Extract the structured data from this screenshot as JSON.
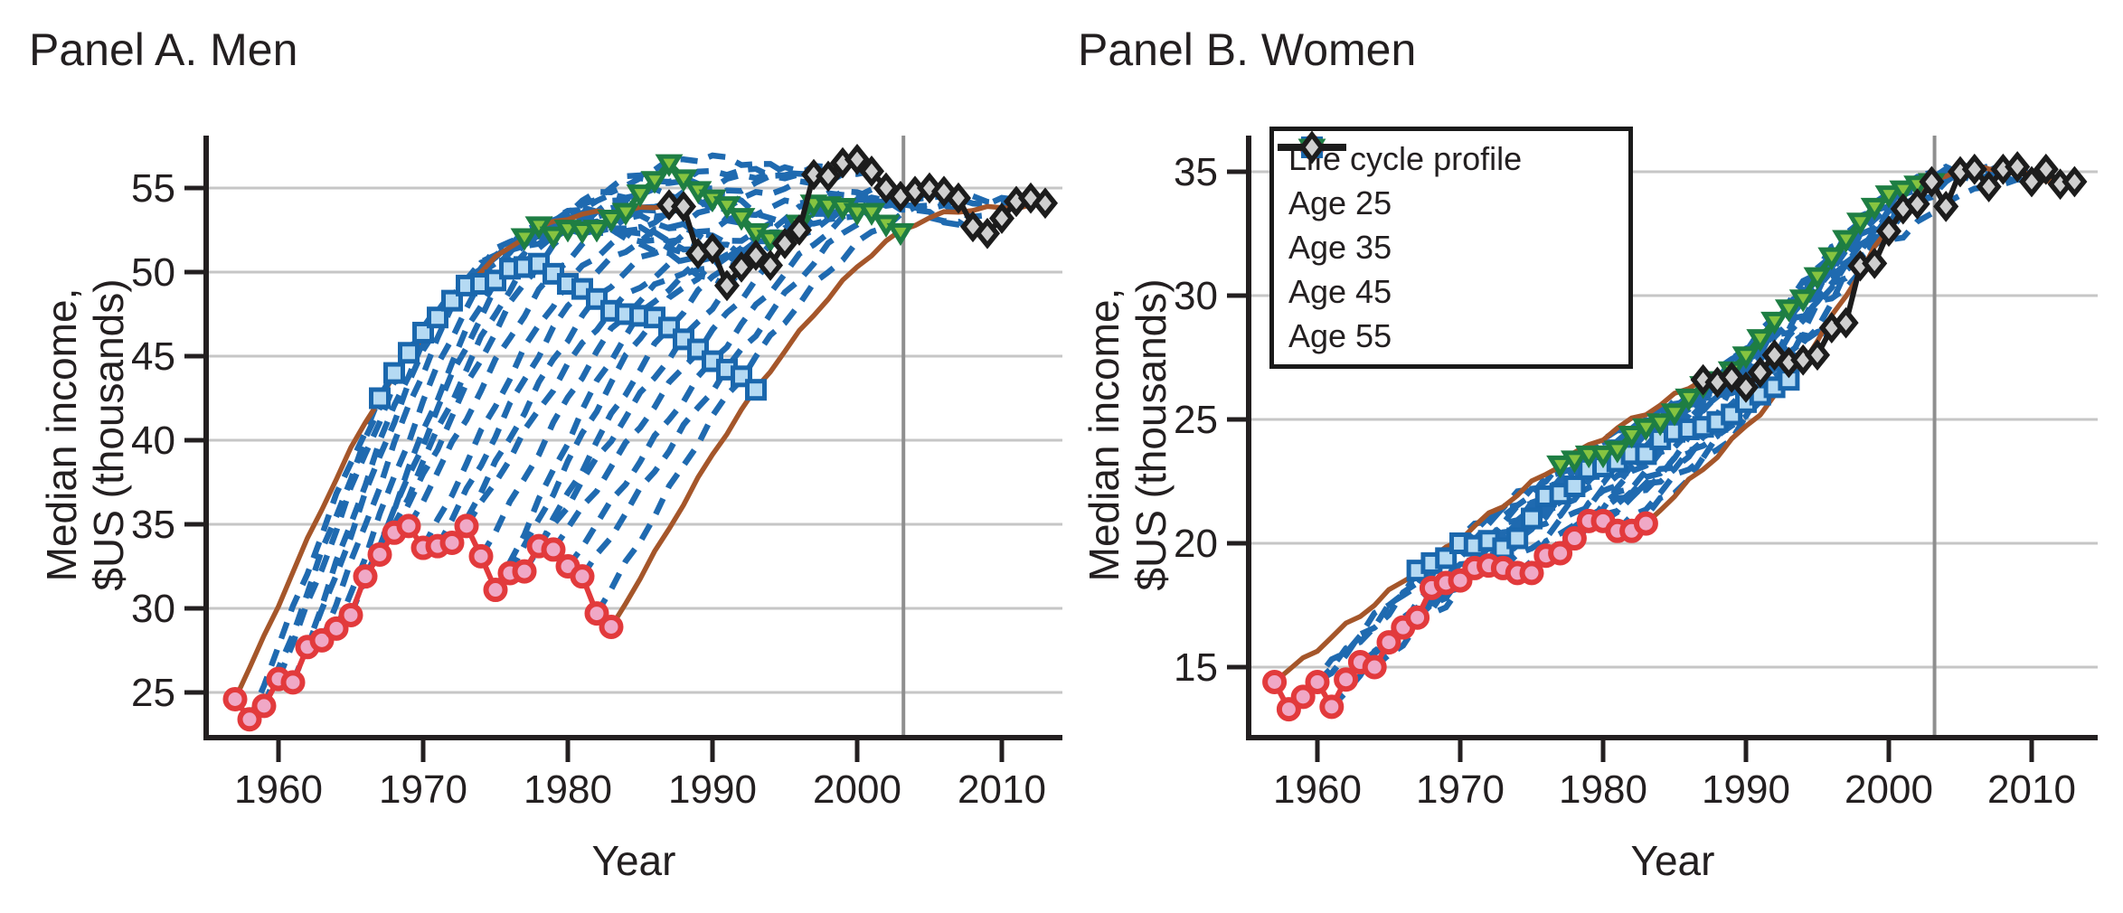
{
  "figure": {
    "panel_a_title": "Panel A. Men",
    "panel_b_title": "Panel B. Women"
  },
  "colors": {
    "profile_blue": "#1f6ab0",
    "age25_red": "#e23a3c",
    "age25_fill": "#f0a8c6",
    "age35_blue": "#1a67ad",
    "age35_fill": "#b5daf3",
    "age45_green": "#1e7e43",
    "age45_fill": "#86c440",
    "age55_black": "#1c1c1c",
    "age55_fill": "#cfcfcf",
    "cohort_brown": "#a5562a",
    "gridline_gray": "#c6c6c6",
    "reference_gray": "#8f8f8f",
    "text": "#231f20"
  },
  "legend": {
    "items": [
      {
        "label": "Life cycle profile",
        "style": "dashed-blue-line"
      },
      {
        "label": "Age 25",
        "style": "red-line-circle-marker"
      },
      {
        "label": "Age 35",
        "style": "blue-line-square-marker"
      },
      {
        "label": "Age 45",
        "style": "green-line-triangle-down-marker"
      },
      {
        "label": "Age 55",
        "style": "black-line-diamond-marker"
      }
    ]
  },
  "chart_data": [
    {
      "type": "line",
      "title": "Panel A. Men",
      "xlabel": "Year",
      "ylabel_line1": "Median income,",
      "ylabel_line2": "$US (thousands)",
      "x_ticks": [
        1960,
        1970,
        1980,
        1990,
        2000,
        2010
      ],
      "y_ticks": [
        25,
        30,
        35,
        40,
        45,
        50,
        55
      ],
      "xlim": [
        1955,
        2014.3
      ],
      "ylim": [
        22.3,
        58.1
      ],
      "grid": "horizontal-only",
      "reference_line_year": 2003,
      "series": [
        {
          "name": "Age 25",
          "start_year": 1957,
          "values": [
            24.6,
            23.4,
            24.2,
            25.8,
            25.6,
            27.7,
            28.1,
            28.8,
            29.6,
            31.9,
            33.2,
            34.5,
            34.9,
            33.6,
            33.7,
            33.9,
            34.9,
            33.1,
            31.1,
            32.1,
            32.2,
            33.7,
            33.5,
            32.5,
            31.9,
            29.7,
            28.9
          ]
        },
        {
          "name": "Age 35",
          "start_year": 1967,
          "values": [
            42.5,
            44.0,
            45.2,
            46.4,
            47.3,
            48.3,
            49.2,
            49.3,
            49.5,
            50.2,
            50.3,
            50.5,
            49.9,
            49.3,
            49.0,
            48.4,
            47.7,
            47.5,
            47.4,
            47.3,
            46.7,
            46.0,
            45.4,
            44.7,
            44.2,
            43.8,
            43.0
          ]
        },
        {
          "name": "Age 45",
          "start_year": 1977,
          "values": [
            52.1,
            52.8,
            52.2,
            52.6,
            52.5,
            52.6,
            53.2,
            53.6,
            54.7,
            55.5,
            56.5,
            55.6,
            54.9,
            54.4,
            54.0,
            53.3,
            52.4,
            52.0,
            51.9,
            52.9,
            54.1,
            54.0,
            53.9,
            53.6,
            53.6,
            52.9,
            52.4
          ]
        },
        {
          "name": "Age 55",
          "start_year": 1987,
          "values": [
            54.0,
            53.9,
            51.1,
            51.4,
            49.2,
            50.3,
            51.0,
            50.4,
            51.7,
            52.5,
            55.8,
            55.7,
            56.5,
            56.7,
            56.0,
            55.0,
            54.5,
            54.8,
            55.0,
            54.8,
            54.4,
            52.7,
            52.3,
            53.2,
            54.2,
            54.4,
            54.1
          ]
        }
      ],
      "life_cycle_profiles": {
        "note": "27 dashed blue cohort profiles; each connects the same cohort at age 25, 35, 45 and 55 (years t, t+10, t+20, t+30). First (1957) and last (1983) age-25 cohorts are drawn as solid brown lines.",
        "cohorts": 27,
        "first_age25_year": 1957,
        "last_age25_year": 1983
      }
    },
    {
      "type": "line",
      "title": "Panel B. Women",
      "xlabel": "Year",
      "ylabel_line1": "Median income,",
      "ylabel_line2": "$US (thousands)",
      "x_ticks": [
        1960,
        1970,
        1980,
        1990,
        2000,
        2010
      ],
      "y_ticks": [
        15,
        20,
        25,
        30,
        35
      ],
      "xlim": [
        1955,
        2014.6
      ],
      "ylim": [
        12.2,
        36.5
      ],
      "grid": "horizontal-only",
      "reference_line_year": 2003,
      "series": [
        {
          "name": "Age 25",
          "start_year": 1957,
          "values": [
            14.4,
            13.3,
            13.8,
            14.4,
            13.4,
            14.5,
            15.2,
            15.0,
            16.0,
            16.6,
            17.0,
            18.2,
            18.4,
            18.5,
            19.0,
            19.1,
            19.0,
            18.8,
            18.8,
            19.5,
            19.6,
            20.2,
            20.9,
            20.9,
            20.5,
            20.5,
            20.8
          ]
        },
        {
          "name": "Age 35",
          "start_year": 1967,
          "values": [
            18.9,
            19.2,
            19.4,
            20.0,
            19.9,
            20.1,
            19.8,
            20.2,
            21.0,
            21.9,
            22.0,
            22.3,
            23.0,
            23.1,
            23.3,
            23.6,
            23.6,
            24.2,
            24.5,
            24.6,
            24.7,
            24.9,
            25.2,
            25.7,
            26.0,
            26.3,
            26.6
          ]
        },
        {
          "name": "Age 45",
          "start_year": 1977,
          "values": [
            23.2,
            23.4,
            23.6,
            23.6,
            23.8,
            24.4,
            24.7,
            24.9,
            25.3,
            25.9,
            26.4,
            26.6,
            27.0,
            27.6,
            28.3,
            29.0,
            29.5,
            29.9,
            30.8,
            31.6,
            32.3,
            33.0,
            33.6,
            34.1,
            34.3,
            34.5,
            34.6
          ]
        },
        {
          "name": "Age 55",
          "start_year": 1987,
          "values": [
            26.6,
            26.5,
            26.7,
            26.3,
            26.9,
            27.6,
            27.3,
            27.4,
            27.6,
            28.7,
            28.9,
            31.2,
            31.3,
            32.6,
            33.5,
            33.7,
            34.6,
            33.6,
            35.0,
            35.1,
            34.4,
            35.1,
            35.2,
            34.6,
            35.1,
            34.5,
            34.6
          ]
        }
      ],
      "life_cycle_profiles": {
        "note": "27 dashed blue cohort profiles; each connects the same cohort at age 25, 35, 45 and 55 (years t, t+10, t+20, t+30). First (1957) and last (1983) age-25 cohorts are drawn as solid brown lines.",
        "cohorts": 27,
        "first_age25_year": 1957,
        "last_age25_year": 1983
      }
    }
  ]
}
